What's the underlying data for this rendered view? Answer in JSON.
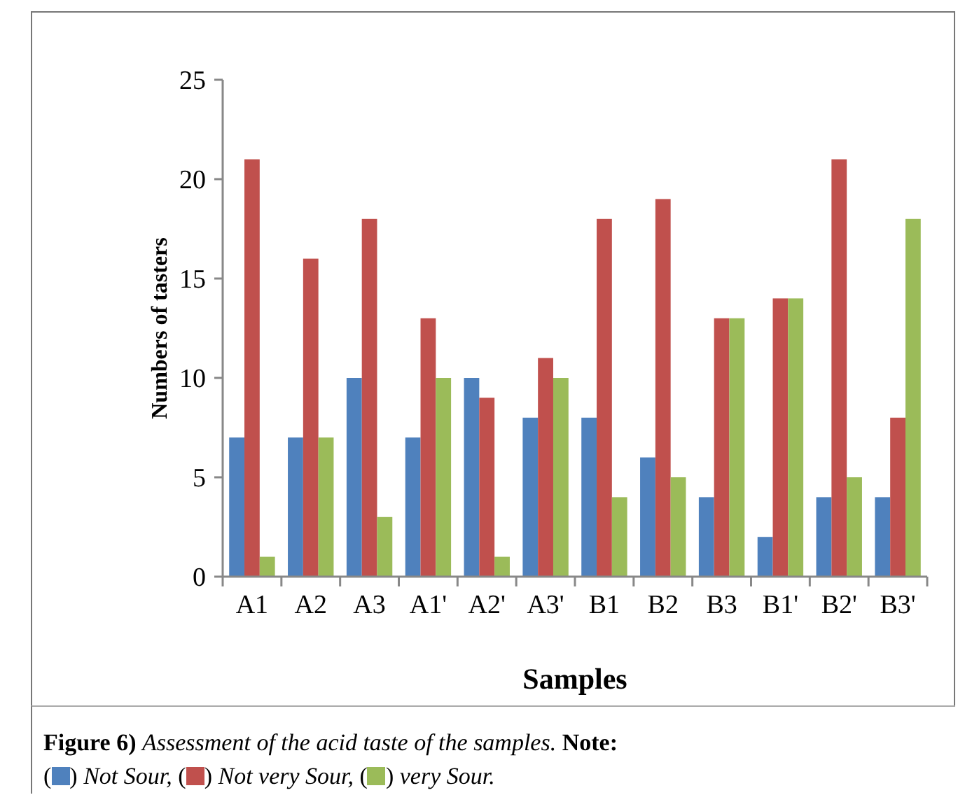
{
  "chart_data": {
    "type": "bar",
    "xlabel": "Samples",
    "ylabel": "Numbers of tasters",
    "categories": [
      "A1",
      "A2",
      "A3",
      "A1'",
      "A2'",
      "A3'",
      "B1",
      "B2",
      "B3",
      "B1'",
      "B2'",
      "B3'"
    ],
    "series": [
      {
        "name": "Not Sour",
        "color": "#4f81bd",
        "values": [
          7,
          7,
          10,
          7,
          10,
          8,
          8,
          6,
          4,
          2,
          4,
          4
        ]
      },
      {
        "name": "Not very Sour",
        "color": "#c0504d",
        "values": [
          21,
          16,
          18,
          13,
          9,
          11,
          18,
          19,
          13,
          14,
          21,
          8
        ]
      },
      {
        "name": "very Sour",
        "color": "#9bbb59",
        "values": [
          1,
          7,
          3,
          10,
          1,
          10,
          4,
          5,
          13,
          14,
          5,
          18
        ]
      }
    ],
    "ylim": [
      0,
      25
    ],
    "yticks": [
      0,
      5,
      10,
      15,
      20,
      25
    ],
    "grid": false,
    "legend": "bottom",
    "annotations": [
      "Figure 6) Assessment of the acid taste of the samples.",
      "Note:",
      "(",
      ")",
      ",",
      "."
    ]
  }
}
